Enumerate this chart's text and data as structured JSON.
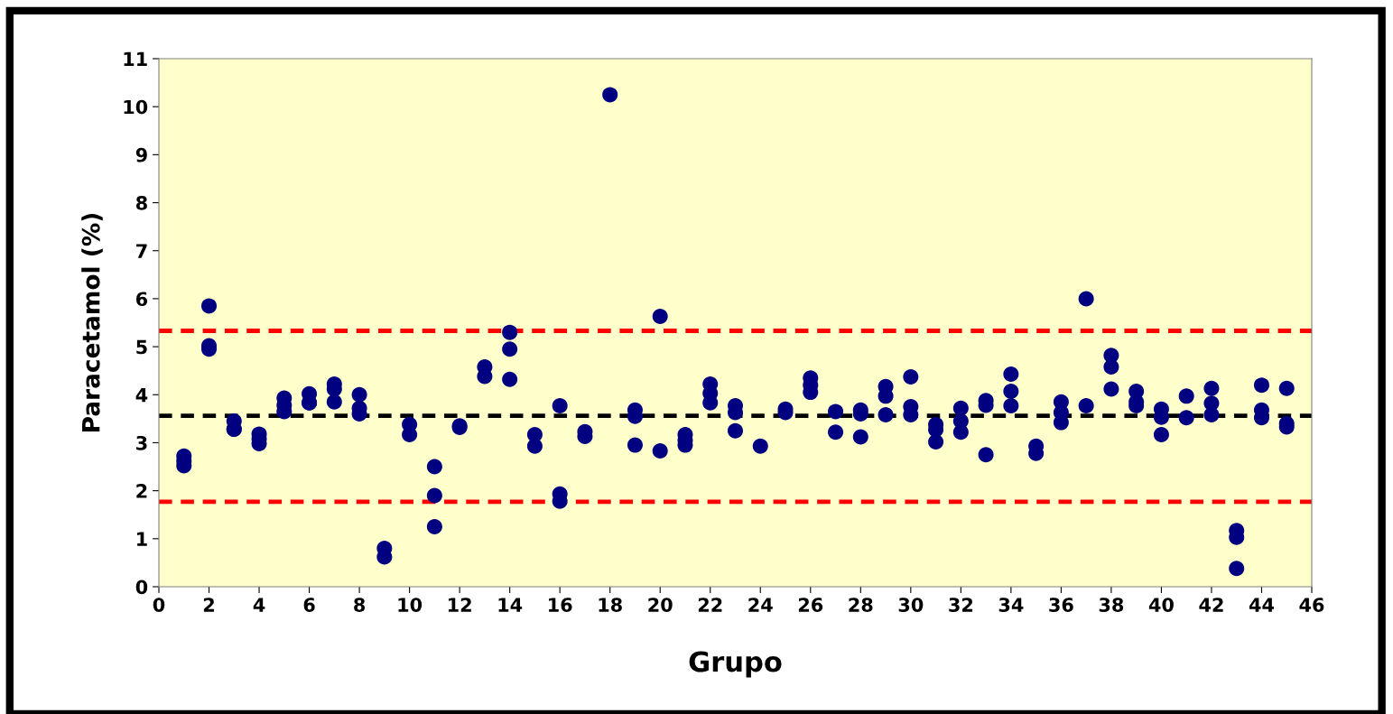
{
  "chart_data": {
    "type": "scatter",
    "xlabel": "Grupo",
    "ylabel": "Paracetamol (%)",
    "xlim": [
      0,
      46
    ],
    "xticks": [
      0,
      2,
      4,
      6,
      8,
      10,
      12,
      14,
      16,
      18,
      20,
      22,
      24,
      26,
      28,
      30,
      32,
      34,
      36,
      38,
      40,
      42,
      44,
      46
    ],
    "ylim": [
      0,
      11
    ],
    "yticks": [
      0,
      1,
      2,
      3,
      4,
      5,
      6,
      7,
      8,
      9,
      10,
      11
    ],
    "grid": false,
    "legend": false,
    "marker": "circle",
    "series": [
      {
        "color": "#000080",
        "x": [
          1,
          1,
          1,
          2,
          2,
          2,
          3,
          3,
          3,
          4,
          4,
          4,
          5,
          5,
          5,
          6,
          6,
          6,
          7,
          7,
          7,
          8,
          8,
          8,
          9,
          9,
          10,
          10,
          11,
          11,
          11,
          12,
          12,
          13,
          13,
          14,
          14,
          14,
          15,
          15,
          16,
          16,
          16,
          17,
          17,
          18,
          19,
          19,
          19,
          20,
          20,
          21,
          21,
          21,
          22,
          22,
          22,
          23,
          23,
          23,
          24,
          25,
          25,
          26,
          26,
          26,
          27,
          27,
          28,
          28,
          28,
          29,
          29,
          29,
          30,
          30,
          30,
          31,
          31,
          31,
          32,
          32,
          32,
          33,
          33,
          33,
          34,
          34,
          34,
          35,
          35,
          36,
          36,
          36,
          37,
          37,
          38,
          38,
          38,
          39,
          39,
          39,
          40,
          40,
          40,
          41,
          41,
          42,
          42,
          42,
          43,
          43,
          43,
          44,
          44,
          44,
          45,
          45,
          45
        ],
        "values": [
          2.72,
          2.62,
          2.52,
          5.85,
          5.02,
          4.95,
          3.45,
          3.28,
          3.28,
          3.18,
          3.08,
          2.98,
          3.93,
          3.78,
          3.65,
          4.02,
          3.83,
          3.83,
          4.22,
          4.12,
          3.85,
          4.0,
          3.72,
          3.6,
          0.8,
          0.62,
          3.38,
          3.17,
          2.5,
          1.9,
          1.25,
          3.35,
          3.32,
          4.58,
          4.38,
          5.3,
          4.95,
          4.32,
          3.17,
          2.93,
          3.77,
          1.93,
          1.78,
          3.23,
          3.13,
          10.25,
          3.68,
          3.55,
          2.95,
          5.63,
          2.83,
          3.17,
          3.05,
          2.95,
          4.22,
          4.03,
          3.83,
          3.77,
          3.63,
          3.25,
          2.93,
          3.7,
          3.63,
          4.35,
          4.2,
          4.05,
          3.65,
          3.22,
          3.68,
          3.6,
          3.12,
          4.17,
          3.97,
          3.58,
          4.37,
          3.75,
          3.58,
          3.38,
          3.27,
          3.02,
          3.72,
          3.45,
          3.22,
          3.88,
          3.78,
          2.75,
          4.43,
          4.07,
          3.77,
          2.93,
          2.78,
          3.85,
          3.63,
          3.42,
          6.0,
          3.77,
          4.82,
          4.58,
          4.12,
          4.07,
          3.85,
          3.77,
          3.7,
          3.53,
          3.17,
          3.97,
          3.52,
          4.13,
          3.82,
          3.58,
          1.17,
          1.03,
          0.38,
          4.2,
          3.68,
          3.52,
          4.13,
          3.4,
          3.33
        ]
      }
    ],
    "ref_lines": [
      {
        "axis": "y",
        "value": 5.33,
        "color": "#ff0000",
        "line_style": "dashed"
      },
      {
        "axis": "y",
        "value": 3.56,
        "color": "#000000",
        "line_style": "dashed"
      },
      {
        "axis": "y",
        "value": 1.77,
        "color": "#ff0000",
        "line_style": "dashed"
      }
    ]
  }
}
